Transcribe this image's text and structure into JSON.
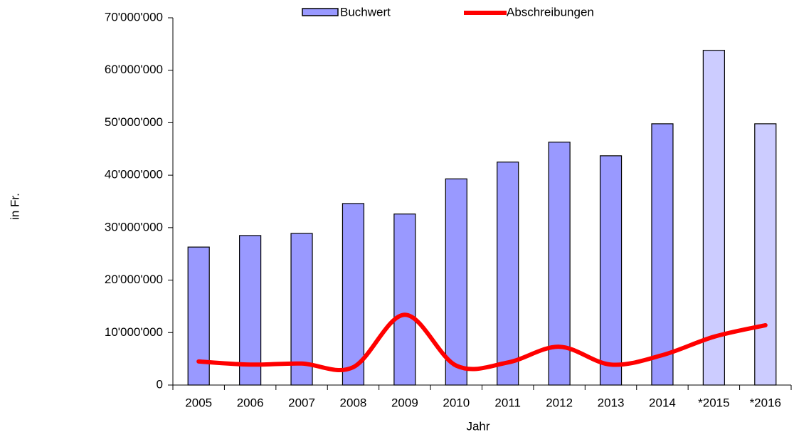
{
  "chart_data": {
    "type": "bar",
    "categories": [
      "2005",
      "2006",
      "2007",
      "2008",
      "2009",
      "2010",
      "2011",
      "2012",
      "2013",
      "2014",
      "*2015",
      "*2016"
    ],
    "series": [
      {
        "name": "Buchwert",
        "type": "bar",
        "color": "#9999ff",
        "colors": [
          "#9999ff",
          "#9999ff",
          "#9999ff",
          "#9999ff",
          "#9999ff",
          "#9999ff",
          "#9999ff",
          "#9999ff",
          "#9999ff",
          "#9999ff",
          "#ccccff",
          "#ccccff"
        ],
        "values": [
          26300000,
          28500000,
          28900000,
          34600000,
          32600000,
          39300000,
          42500000,
          46300000,
          43700000,
          49800000,
          63800000,
          49800000
        ]
      },
      {
        "name": "Abschreibungen",
        "type": "line",
        "color": "#ff0000",
        "values": [
          4500000,
          3900000,
          4100000,
          3400000,
          13400000,
          3700000,
          4300000,
          7300000,
          3900000,
          5700000,
          9200000,
          11400000
        ]
      }
    ],
    "ylim": [
      0,
      70000000
    ],
    "yticks": [
      0,
      {
        "value": 10000000,
        "label": "10'000'000"
      },
      {
        "value": 20000000,
        "label": "20'000'000"
      },
      {
        "value": 30000000,
        "label": "30'000'000"
      },
      {
        "value": 40000000,
        "label": "40'000'000"
      },
      {
        "value": 50000000,
        "label": "50'000'000"
      },
      {
        "value": 60000000,
        "label": "60'000'000"
      },
      {
        "value": 70000000,
        "label": "70'000'000"
      }
    ],
    "y_label": "in Fr.",
    "x_label": "Jahr",
    "smooth": true
  }
}
